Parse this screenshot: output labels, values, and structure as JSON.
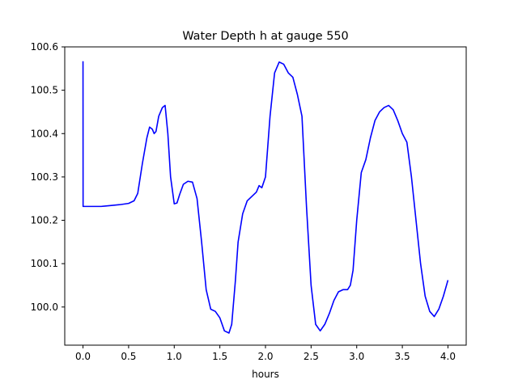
{
  "chart_data": {
    "type": "line",
    "title": "Water Depth h at gauge 550",
    "xlabel": "hours",
    "ylabel": "",
    "xlim": [
      -0.2,
      4.2
    ],
    "ylim": [
      99.912,
      100.6
    ],
    "grid": false,
    "x_ticks": [
      0.0,
      0.5,
      1.0,
      1.5,
      2.0,
      2.5,
      3.0,
      3.5,
      4.0
    ],
    "x_tick_labels": [
      "0.0",
      "0.5",
      "1.0",
      "1.5",
      "2.0",
      "2.5",
      "3.0",
      "3.5",
      "4.0"
    ],
    "y_ticks": [
      100.0,
      100.1,
      100.2,
      100.3,
      100.4,
      100.5,
      100.6
    ],
    "y_tick_labels": [
      "100.0",
      "100.1",
      "100.2",
      "100.3",
      "100.4",
      "100.5",
      "100.6"
    ],
    "series": [
      {
        "color": "#0000ff",
        "x": [
          0.0,
          0.001,
          0.003,
          0.1,
          0.2,
          0.3,
          0.4,
          0.5,
          0.56,
          0.6,
          0.65,
          0.7,
          0.73,
          0.76,
          0.78,
          0.8,
          0.83,
          0.87,
          0.9,
          0.93,
          0.96,
          1.0,
          1.03,
          1.06,
          1.1,
          1.15,
          1.2,
          1.25,
          1.3,
          1.35,
          1.4,
          1.45,
          1.5,
          1.55,
          1.6,
          1.63,
          1.67,
          1.7,
          1.75,
          1.8,
          1.85,
          1.9,
          1.93,
          1.96,
          2.0,
          2.05,
          2.1,
          2.15,
          2.2,
          2.25,
          2.3,
          2.35,
          2.4,
          2.45,
          2.5,
          2.55,
          2.6,
          2.65,
          2.7,
          2.75,
          2.8,
          2.85,
          2.9,
          2.93,
          2.96,
          3.0,
          3.05,
          3.1,
          3.15,
          3.2,
          3.25,
          3.3,
          3.35,
          3.4,
          3.45,
          3.5,
          3.55,
          3.6,
          3.65,
          3.7,
          3.75,
          3.8,
          3.85,
          3.9,
          3.95,
          4.0
        ],
        "y": [
          100.567,
          100.232,
          100.232,
          100.232,
          100.232,
          100.234,
          100.236,
          100.239,
          100.245,
          100.262,
          100.33,
          100.39,
          100.415,
          100.41,
          100.4,
          100.405,
          100.44,
          100.46,
          100.465,
          100.4,
          100.3,
          100.238,
          100.24,
          100.26,
          100.283,
          100.29,
          100.288,
          100.25,
          100.15,
          100.04,
          99.995,
          99.99,
          99.975,
          99.945,
          99.94,
          99.96,
          100.06,
          100.15,
          100.215,
          100.245,
          100.255,
          100.265,
          100.28,
          100.275,
          100.3,
          100.44,
          100.54,
          100.565,
          100.56,
          100.54,
          100.53,
          100.49,
          100.44,
          100.23,
          100.05,
          99.96,
          99.945,
          99.96,
          99.985,
          100.015,
          100.035,
          100.04,
          100.04,
          100.05,
          100.085,
          100.2,
          100.31,
          100.34,
          100.39,
          100.43,
          100.45,
          100.46,
          100.465,
          100.455,
          100.43,
          100.4,
          100.38,
          100.3,
          100.2,
          100.1,
          100.025,
          99.99,
          99.978,
          99.995,
          100.025,
          100.062
        ]
      }
    ]
  }
}
